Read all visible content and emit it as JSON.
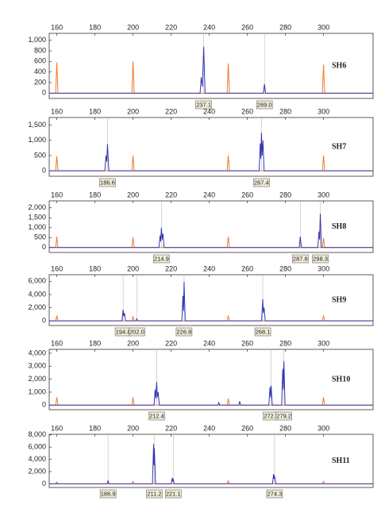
{
  "chart_data": [
    {
      "type": "line",
      "title": "SH6",
      "xlim": [
        156,
        326
      ],
      "xticks": [
        160,
        180,
        200,
        220,
        240,
        260,
        280,
        300
      ],
      "ylim": [
        -100,
        1130
      ],
      "yticks": [
        0,
        200,
        400,
        600,
        800,
        {
          "value": 1000,
          "label": "1,000"
        }
      ],
      "series": [
        {
          "color": "#f07a28",
          "x": [
            156,
            159.4,
            160,
            160.6,
            199.4,
            200,
            200.6,
            249.4,
            250,
            250.6,
            299.4,
            300,
            300.6,
            326
          ],
          "values": [
            0,
            0,
            580,
            0,
            0,
            600,
            0,
            0,
            560,
            0,
            0,
            540,
            0,
            0
          ]
        },
        {
          "color": "#3535b5",
          "x": [
            156,
            235.2,
            235.8,
            236.4,
            237.1,
            237.8,
            268.4,
            269,
            269.6,
            326
          ],
          "values": [
            0,
            0,
            300,
            120,
            880,
            0,
            0,
            170,
            0,
            0
          ]
        }
      ],
      "marker_x": [
        237.1,
        269.0
      ],
      "marker_labels": [
        "237.1",
        "269.0"
      ]
    },
    {
      "type": "line",
      "title": "SH7",
      "xlim": [
        156,
        326
      ],
      "xticks": [
        160,
        180,
        200,
        220,
        240,
        260,
        280,
        300
      ],
      "ylim": [
        -180,
        1750
      ],
      "yticks": [
        0,
        500,
        {
          "value": 1000,
          "label": "1,000"
        },
        {
          "value": 1500,
          "label": "1,500"
        }
      ],
      "series": [
        {
          "color": "#f07a28",
          "x": [
            156,
            159.4,
            160,
            160.6,
            199.4,
            200,
            200.6,
            249.4,
            250,
            250.6,
            299.4,
            300,
            300.6,
            326
          ],
          "values": [
            0,
            0,
            480,
            0,
            0,
            500,
            0,
            0,
            500,
            0,
            0,
            500,
            0,
            0
          ]
        },
        {
          "color": "#3535b5",
          "x": [
            156,
            185.2,
            185.8,
            186.2,
            186.6,
            187.3,
            266.2,
            266.8,
            267.1,
            267.4,
            267.8,
            268.2,
            268.8,
            326
          ],
          "values": [
            0,
            0,
            500,
            300,
            880,
            0,
            0,
            900,
            400,
            1250,
            500,
            1000,
            0,
            0
          ]
        }
      ],
      "marker_x": [
        186.6,
        267.4
      ],
      "marker_labels": [
        "186.6",
        "267.4"
      ]
    },
    {
      "type": "line",
      "title": "SH8",
      "xlim": [
        156,
        326
      ],
      "xticks": [
        160,
        180,
        200,
        220,
        240,
        260,
        280,
        300
      ],
      "ylim": [
        -250,
        2350
      ],
      "yticks": [
        0,
        500,
        {
          "value": 1000,
          "label": "1,000"
        },
        {
          "value": 1500,
          "label": "1,500"
        },
        {
          "value": 2000,
          "label": "2,000"
        }
      ],
      "series": [
        {
          "color": "#f07a28",
          "x": [
            156,
            159.4,
            160,
            160.6,
            199.4,
            200,
            200.6,
            249.4,
            250,
            250.6,
            299.4,
            300,
            300.6,
            326
          ],
          "values": [
            0,
            0,
            550,
            0,
            0,
            520,
            0,
            0,
            550,
            0,
            0,
            480,
            0,
            0
          ]
        },
        {
          "color": "#3535b5",
          "x": [
            156,
            213.6,
            214.2,
            214.5,
            214.9,
            215.3,
            215.7,
            216.3,
            287.2,
            287.8,
            288.4,
            297.0,
            297.6,
            297.9,
            298.3,
            298.9,
            326
          ],
          "values": [
            0,
            0,
            600,
            300,
            1000,
            400,
            700,
            0,
            0,
            550,
            0,
            0,
            800,
            400,
            1700,
            0,
            0
          ]
        }
      ],
      "marker_x": [
        214.9,
        287.8,
        298.3
      ],
      "marker_labels": [
        "214.9",
        "287.8",
        "298.3"
      ]
    },
    {
      "type": "line",
      "title": "SH9",
      "xlim": [
        156,
        326
      ],
      "xticks": [
        160,
        180,
        200,
        220,
        240,
        260,
        280,
        300
      ],
      "ylim": [
        -700,
        7000
      ],
      "yticks": [
        0,
        {
          "value": 2000,
          "label": "2,000"
        },
        {
          "value": 4000,
          "label": "4,000"
        },
        {
          "value": 6000,
          "label": "6,000"
        }
      ],
      "series": [
        {
          "color": "#f07a28",
          "x": [
            156,
            159.4,
            160,
            160.6,
            199.4,
            200,
            200.6,
            249.4,
            250,
            250.6,
            299.4,
            300,
            300.6,
            326
          ],
          "values": [
            0,
            0,
            800,
            0,
            0,
            700,
            0,
            0,
            800,
            0,
            0,
            800,
            0,
            0
          ]
        },
        {
          "color": "#3535b5",
          "x": [
            156,
            194.2,
            194.8,
            195.1,
            195.5,
            196.1,
            201.5,
            202,
            202.5,
            225.6,
            226.2,
            226.5,
            226.8,
            227.4,
            267.5,
            268.1,
            268.4,
            268.8,
            269.4,
            326
          ],
          "values": [
            0,
            0,
            1700,
            700,
            1200,
            0,
            0,
            300,
            0,
            0,
            3800,
            1500,
            5900,
            0,
            0,
            3300,
            1200,
            2000,
            0,
            0
          ]
        }
      ],
      "marker_x": [
        194.8,
        202.0,
        226.8,
        268.1
      ],
      "marker_labels": [
        "194.8",
        "202.0",
        "226.8",
        "268.1"
      ]
    },
    {
      "type": "line",
      "title": "SH10",
      "xlim": [
        156,
        326
      ],
      "xticks": [
        160,
        180,
        200,
        220,
        240,
        260,
        280,
        300
      ],
      "ylim": [
        -350,
        4300
      ],
      "yticks": [
        0,
        {
          "value": 1000,
          "label": "1,000"
        },
        {
          "value": 2000,
          "label": "2,000"
        },
        {
          "value": 3000,
          "label": "3,000"
        },
        {
          "value": 4000,
          "label": "4,000"
        }
      ],
      "series": [
        {
          "color": "#f07a28",
          "x": [
            156,
            159.4,
            160,
            160.6,
            199.4,
            200,
            200.6,
            249.4,
            250,
            250.6,
            299.4,
            300,
            300.6,
            326
          ],
          "values": [
            0,
            0,
            600,
            0,
            0,
            600,
            0,
            0,
            500,
            0,
            0,
            600,
            0,
            0
          ]
        },
        {
          "color": "#3535b5",
          "x": [
            156,
            211,
            211.6,
            212,
            212.4,
            212.8,
            213.2,
            213.8,
            244.5,
            245,
            245.5,
            255.5,
            256,
            256.5,
            271.3,
            271.9,
            272.2,
            272.5,
            273.1,
            278,
            278.6,
            278.9,
            279.2,
            279.8,
            326
          ],
          "values": [
            0,
            0,
            1200,
            500,
            1800,
            600,
            1000,
            0,
            0,
            200,
            0,
            0,
            300,
            0,
            0,
            1400,
            600,
            1500,
            0,
            0,
            2800,
            1200,
            3400,
            0,
            0
          ]
        }
      ],
      "marker_x": [
        212.4,
        272.5,
        279.2
      ],
      "marker_labels": [
        "212.4",
        "272.5",
        "279.2"
      ]
    },
    {
      "type": "line",
      "title": "SH11",
      "xlim": [
        156,
        326
      ],
      "xticks": [
        160,
        180,
        200,
        220,
        240,
        260,
        280,
        300
      ],
      "ylim": [
        -600,
        8100
      ],
      "yticks": [
        0,
        {
          "value": 2000,
          "label": "2,000"
        },
        {
          "value": 4000,
          "label": "4,000"
        },
        {
          "value": 6000,
          "label": "6,000"
        },
        {
          "value": 8000,
          "label": "8,000"
        }
      ],
      "series": [
        {
          "color": "#f07a28",
          "x": [
            156,
            159.4,
            160,
            160.6,
            199.4,
            200,
            200.6,
            249.4,
            250,
            250.6,
            299.4,
            300,
            300.6,
            326
          ],
          "values": [
            0,
            0,
            300,
            0,
            0,
            400,
            0,
            0,
            500,
            0,
            0,
            400,
            0,
            0
          ]
        },
        {
          "color": "#3535b5",
          "x": [
            156,
            186.4,
            186.9,
            187.4,
            210.2,
            210.8,
            211,
            211.2,
            211.8,
            220.1,
            220.6,
            220.8,
            221.1,
            221.6,
            273.2,
            273.8,
            274,
            274.3,
            274.9,
            326
          ],
          "values": [
            0,
            0,
            500,
            0,
            0,
            6500,
            3000,
            5800,
            0,
            0,
            1000,
            400,
            800,
            0,
            0,
            1600,
            800,
            1300,
            0,
            0
          ]
        }
      ],
      "marker_x": [
        186.9,
        211.2,
        221.1,
        274.3
      ],
      "marker_labels": [
        "186.9",
        "211.2",
        "221.1",
        "274.3"
      ]
    }
  ]
}
